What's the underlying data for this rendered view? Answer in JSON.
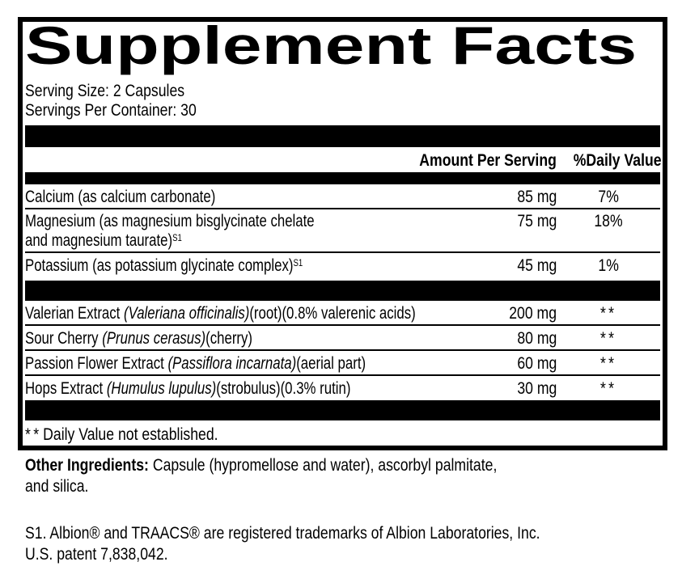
{
  "colors": {
    "ink": "#000000",
    "paper": "#ffffff"
  },
  "panel": {
    "title": "Supplement Facts",
    "serving_size": "Serving Size: 2 Capsules",
    "servings_per_container": "Servings Per Container: 30",
    "header": {
      "amount": "Amount Per Serving",
      "daily_value": "%Daily Value"
    },
    "rows": [
      {
        "name": "Calcium (as calcium carbonate)",
        "amount": "85 mg",
        "dv": "7%"
      },
      {
        "name_line1": "Magnesium (as magnesium bisglycinate chelate",
        "name_line2": "and magnesium taurate)",
        "footnote_ref": "S1",
        "amount": "75 mg",
        "dv": "18%"
      },
      {
        "name": "Potassium (as potassium glycinate complex)",
        "footnote_ref": "S1",
        "amount": "45 mg",
        "dv": "1%"
      },
      {
        "name_pre": "Valerian Extract ",
        "name_latin": "(Valeriana officinalis)",
        "name_post": "(root)(0.8% valerenic acids)",
        "amount": "200 mg",
        "dv": "**"
      },
      {
        "name_pre": "Sour Cherry ",
        "name_latin": "(Prunus cerasus)",
        "name_post": "(cherry)",
        "amount": "80 mg",
        "dv": "**"
      },
      {
        "name_pre": "Passion Flower Extract ",
        "name_latin": "(Passiflora incarnata)",
        "name_post": "(aerial part)",
        "amount": "60 mg",
        "dv": "**"
      },
      {
        "name_pre": "Hops Extract ",
        "name_latin": "(Humulus lupulus)",
        "name_post": "(strobulus)(0.3% rutin)",
        "amount": "30 mg",
        "dv": "**"
      }
    ],
    "footnote": {
      "stars": "**",
      "text": "Daily Value not established."
    }
  },
  "other_ingredients": {
    "label": "Other Ingredients:",
    "line1": "Capsule (hypromellose and water), ascorbyl palmitate,",
    "line2": "and silica."
  },
  "trademark_note": {
    "line1": "S1. Albion® and TRAACS® are registered trademarks of Albion Laboratories, Inc.",
    "line2": "U.S. patent 7,838,042."
  }
}
